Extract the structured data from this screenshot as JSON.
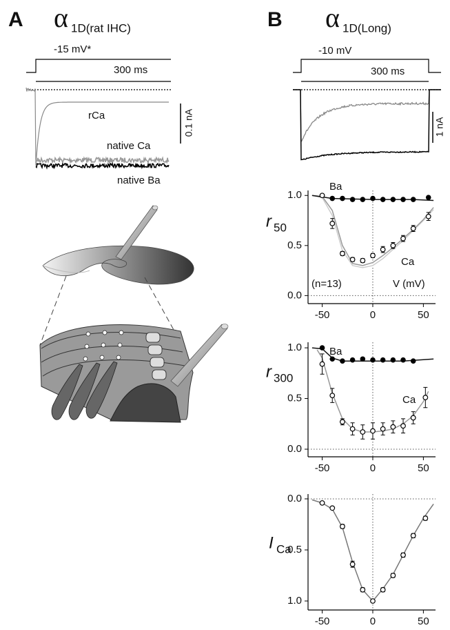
{
  "panels": [
    {
      "letter": "A",
      "symbol": "α",
      "subscript": "1D(rat IHC)",
      "step_label": "-15 mV*",
      "duration": "300 ms",
      "scale_bar": "0.1 nA",
      "trace_labels": [
        "rCa",
        "native Ca",
        "native Ba"
      ]
    },
    {
      "letter": "B",
      "symbol": "α",
      "subscript": "1D(Long)",
      "step_label": "-10 mV",
      "duration": "300 ms",
      "scale_bar": "1 nA"
    }
  ],
  "chart_data": [
    {
      "type": "scatter",
      "ylabel": "r",
      "ylabel_sub": "50",
      "labels": [
        "Ba",
        "Ca",
        "(n=13)",
        "V (mV)"
      ],
      "xlim": [
        -64,
        62
      ],
      "xticks": [
        -50,
        0,
        50
      ],
      "ylim": [
        -0.08,
        1.05
      ],
      "yticks": [
        {
          "value": 0,
          "label": "0.0"
        },
        0.5,
        {
          "value": 1,
          "label": "1.0"
        }
      ],
      "zero_lines": true,
      "series": [
        {
          "style": "fit",
          "color": "#cccccc",
          "x": [
            -60,
            -50,
            -40,
            -30,
            -20,
            -10,
            0,
            10,
            20,
            30,
            40,
            50,
            60
          ],
          "values": [
            1.0,
            0.98,
            0.8,
            0.45,
            0.3,
            0.28,
            0.3,
            0.37,
            0.46,
            0.55,
            0.65,
            0.75,
            0.86
          ]
        },
        {
          "style": "fit",
          "color": "#999999",
          "x": [
            -60,
            -50,
            -40,
            -30,
            -20,
            -10,
            0,
            10,
            20,
            30,
            40,
            50,
            60
          ],
          "values": [
            1.0,
            0.99,
            0.85,
            0.5,
            0.32,
            0.3,
            0.33,
            0.4,
            0.48,
            0.57,
            0.66,
            0.76,
            0.88
          ]
        },
        {
          "style": "fit",
          "color": "#111111",
          "x": [
            -60,
            -40,
            0,
            40,
            60
          ],
          "values": [
            1.0,
            0.97,
            0.96,
            0.96,
            0.95
          ]
        },
        {
          "style": "open",
          "color": "#000000",
          "x": [
            -50,
            -40,
            -30,
            -20,
            -10,
            0,
            10,
            20,
            30,
            40,
            55
          ],
          "values": [
            1.0,
            0.72,
            0.42,
            0.36,
            0.35,
            0.4,
            0.46,
            0.5,
            0.57,
            0.67,
            0.79
          ],
          "errors": [
            0.01,
            0.05,
            0.02,
            0.02,
            0.02,
            0.02,
            0.03,
            0.03,
            0.03,
            0.03,
            0.04
          ]
        },
        {
          "style": "filled",
          "color": "#000000",
          "x": [
            -40,
            -30,
            -20,
            -10,
            0,
            10,
            20,
            30,
            40,
            55
          ],
          "values": [
            0.97,
            0.97,
            0.96,
            0.96,
            0.97,
            0.96,
            0.96,
            0.96,
            0.96,
            0.98
          ]
        }
      ]
    },
    {
      "type": "scatter",
      "ylabel": "r",
      "ylabel_sub": "300",
      "labels": [
        "Ba",
        "Ca"
      ],
      "xlim": [
        -64,
        62
      ],
      "xticks": [
        -50,
        0,
        50
      ],
      "ylim": [
        -0.075,
        1.055
      ],
      "yticks": [
        {
          "value": 0,
          "label": "0.0"
        },
        0.5,
        {
          "value": 1,
          "label": "1.0"
        }
      ],
      "zero_lines": true,
      "series": [
        {
          "style": "fit",
          "color": "#999999",
          "x": [
            -55,
            -50,
            -40,
            -30,
            -20,
            -10,
            0,
            10,
            20,
            30,
            40,
            50,
            55
          ],
          "values": [
            0.98,
            0.9,
            0.55,
            0.3,
            0.2,
            0.17,
            0.17,
            0.18,
            0.2,
            0.25,
            0.33,
            0.47,
            0.57
          ]
        },
        {
          "style": "fit",
          "color": "#111111",
          "x": [
            -60,
            -50,
            -40,
            -30,
            0,
            30,
            60
          ],
          "values": [
            1.0,
            0.99,
            0.9,
            0.87,
            0.87,
            0.87,
            0.89
          ]
        },
        {
          "style": "open",
          "color": "#000000",
          "x": [
            -50,
            -40,
            -30,
            -20,
            -10,
            0,
            10,
            20,
            30,
            40,
            52
          ],
          "values": [
            0.84,
            0.53,
            0.27,
            0.2,
            0.17,
            0.18,
            0.2,
            0.22,
            0.23,
            0.31,
            0.51
          ],
          "errors": [
            0.1,
            0.07,
            0.03,
            0.06,
            0.07,
            0.08,
            0.06,
            0.06,
            0.07,
            0.06,
            0.1
          ]
        },
        {
          "style": "filled",
          "color": "#000000",
          "x": [
            -50,
            -40,
            -30,
            -20,
            -10,
            0,
            10,
            20,
            30,
            40
          ],
          "values": [
            1.0,
            0.89,
            0.87,
            0.88,
            0.89,
            0.88,
            0.88,
            0.88,
            0.88,
            0.87
          ]
        }
      ]
    },
    {
      "type": "scatter",
      "ylabel": "I",
      "ylabel_sub": "Ca",
      "labels": [],
      "xlim": [
        -64,
        62
      ],
      "xticks": [
        -50,
        0,
        50
      ],
      "ylim": [
        1.088,
        -0.047
      ],
      "yticks": [
        {
          "value": 0,
          "label": "0.0"
        },
        0.5,
        {
          "value": 1,
          "label": "1.0"
        }
      ],
      "zero_lines": true,
      "series": [
        {
          "style": "fit",
          "color": "#777777",
          "x": [
            -60,
            -50,
            -40,
            -30,
            -20,
            -10,
            0,
            10,
            20,
            30,
            40,
            50,
            60
          ],
          "values": [
            0.01,
            0.04,
            0.1,
            0.28,
            0.62,
            0.89,
            1.0,
            0.88,
            0.74,
            0.55,
            0.36,
            0.19,
            0.05
          ]
        },
        {
          "style": "open",
          "color": "#000000",
          "x": [
            -50,
            -40,
            -30,
            -20,
            -10,
            0,
            10,
            20,
            30,
            40,
            52
          ],
          "values": [
            0.04,
            0.09,
            0.27,
            0.64,
            0.89,
            1.0,
            0.89,
            0.75,
            0.55,
            0.36,
            0.19
          ],
          "errors": [
            0.01,
            0.01,
            0.02,
            0.03,
            0.02,
            0.01,
            0.02,
            0.02,
            0.02,
            0.02,
            0.02
          ]
        }
      ]
    }
  ]
}
